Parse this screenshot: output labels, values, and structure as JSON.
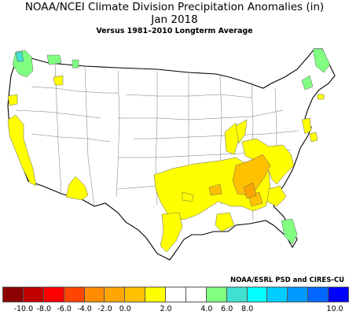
{
  "title": "NOAA/NCEI Climate Division Precipitation Anomalies (in)",
  "month": "Jan 2018",
  "subtitle": "Versus 1981–2010 Longterm Average",
  "credit": "NOAA/ESRL PSD and CIRES-CU",
  "legend": {
    "colors": [
      "#8b0000",
      "#c00000",
      "#ff0000",
      "#ff4500",
      "#ff8c00",
      "#ffa500",
      "#ffc000",
      "#ffff00",
      "#ffffff",
      "#ffffff",
      "#80ff80",
      "#40e0d0",
      "#00ffff",
      "#00ccff",
      "#0099ff",
      "#0066ff",
      "#0000ff"
    ],
    "ticks": [
      "-10.0",
      "-8.0",
      "-6.0",
      "-4.0",
      "-2.0",
      "0.0",
      "2.0",
      "4.0",
      "6.0",
      "8.0",
      "10.0"
    ]
  },
  "map": {
    "background": "#ffffff",
    "outline_color": "#000000",
    "division_color": "#666666",
    "highlight_colors": {
      "dry": "#ffff00",
      "drier": "#ffc000",
      "driest": "#ffa500",
      "wet": "#80ff80",
      "wetter": "#40e0d0"
    }
  }
}
